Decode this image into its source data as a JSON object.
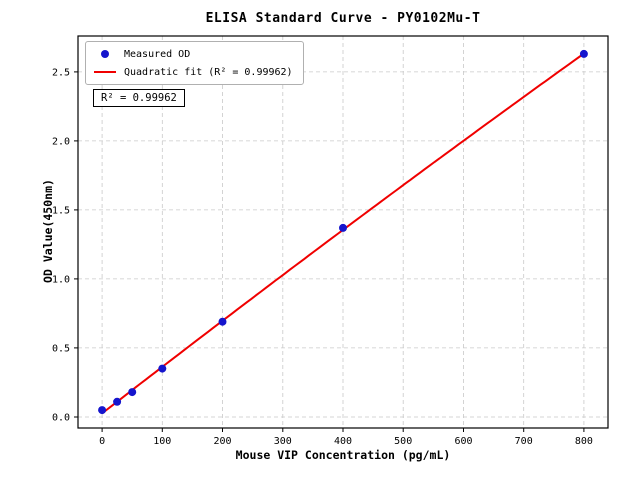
{
  "chart_data": {
    "type": "scatter",
    "title": "ELISA Standard Curve - PY0102Mu-T",
    "xlabel": "Mouse VIP Concentration (pg/mL)",
    "ylabel": "OD Value(450nm)",
    "series": [
      {
        "name": "Measured OD",
        "x": [
          0,
          25,
          50,
          100,
          200,
          400,
          800
        ],
        "y": [
          0.05,
          0.11,
          0.18,
          0.35,
          0.69,
          1.37,
          2.63
        ],
        "marker": "circle",
        "color": "#1515cd"
      }
    ],
    "fit": {
      "type": "quadratic",
      "label": "Quadratic fit (R² = 0.99962)",
      "r_squared": 0.99962,
      "coefficients": [
        0.026,
        0.0033882,
        -1.618e-07
      ],
      "color": "#f00000"
    },
    "xticks": [
      0,
      100,
      200,
      300,
      400,
      500,
      600,
      700,
      800
    ],
    "yticks": [
      0.0,
      0.5,
      1.0,
      1.5,
      2.0,
      2.5
    ],
    "xlim": [
      -40,
      840
    ],
    "ylim": [
      -0.08,
      2.76
    ],
    "grid": true,
    "grid_style": "dashed",
    "grid_color": "#c9c9c9",
    "legend_position": "upper left"
  },
  "legend": {
    "measured_label": "Measured OD",
    "fit_label": "Quadratic fit (R² = 0.99962)"
  },
  "annotation_box": "R² = 0.99962"
}
